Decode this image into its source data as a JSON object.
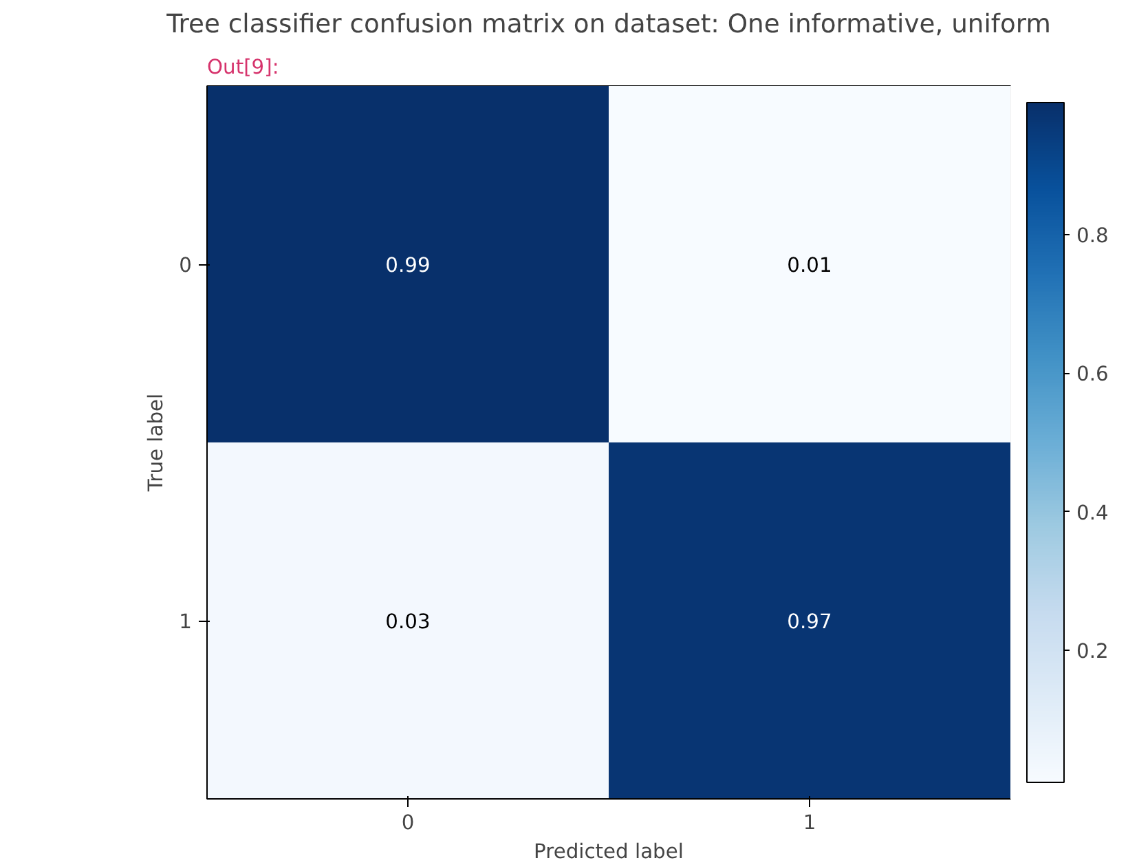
{
  "chart_data": {
    "type": "heatmap",
    "title": "Tree classifier confusion matrix on dataset: One informative, uniform",
    "xlabel": "Predicted label",
    "ylabel": "True label",
    "categories": [
      "0",
      "1"
    ],
    "y_categories": [
      "0",
      "1"
    ],
    "cells": [
      [
        0.99,
        0.01
      ],
      [
        0.03,
        0.97
      ]
    ],
    "clim": [
      0.01,
      0.99
    ],
    "cticks": [
      0.2,
      0.4,
      0.6,
      0.8
    ],
    "data_labels": true,
    "annotations": [
      "Out[9]:"
    ]
  }
}
